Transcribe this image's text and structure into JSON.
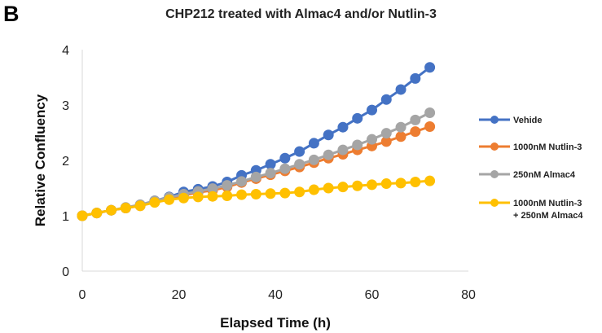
{
  "panel_label": "B",
  "chart_data": {
    "type": "line",
    "title": "CHP212 treated with Almac4 and/or Nutlin-3",
    "xlabel": "Elapsed Time (h)",
    "ylabel": "Relative Confluency",
    "xlim": [
      0,
      80
    ],
    "ylim": [
      0,
      4
    ],
    "xticks": [
      0,
      20,
      40,
      60,
      80
    ],
    "yticks": [
      0,
      1,
      2,
      3,
      4
    ],
    "grid": false,
    "legend_position": "right",
    "x": [
      0,
      3,
      6,
      9,
      12,
      15,
      18,
      21,
      24,
      27,
      30,
      33,
      36,
      39,
      42,
      45,
      48,
      51,
      54,
      57,
      60,
      63,
      66,
      69,
      72
    ],
    "series": [
      {
        "name": "Vehide",
        "color": "#4472C4",
        "values": [
          1.0,
          1.05,
          1.1,
          1.14,
          1.19,
          1.27,
          1.34,
          1.43,
          1.48,
          1.53,
          1.61,
          1.73,
          1.82,
          1.93,
          2.04,
          2.16,
          2.31,
          2.46,
          2.6,
          2.76,
          2.91,
          3.1,
          3.28,
          3.48,
          3.68
        ]
      },
      {
        "name": "1000nM Nutlin-3",
        "color": "#ED7D31",
        "values": [
          1.0,
          1.05,
          1.1,
          1.14,
          1.18,
          1.25,
          1.31,
          1.37,
          1.42,
          1.46,
          1.52,
          1.6,
          1.67,
          1.74,
          1.81,
          1.88,
          1.96,
          2.04,
          2.11,
          2.19,
          2.26,
          2.34,
          2.43,
          2.52,
          2.61
        ]
      },
      {
        "name": "250nM Almac4",
        "color": "#A5A5A5",
        "values": [
          1.0,
          1.05,
          1.1,
          1.15,
          1.2,
          1.27,
          1.33,
          1.39,
          1.44,
          1.49,
          1.55,
          1.62,
          1.7,
          1.77,
          1.85,
          1.93,
          2.01,
          2.1,
          2.19,
          2.28,
          2.38,
          2.49,
          2.6,
          2.73,
          2.86
        ]
      },
      {
        "name": "1000nM Nutlin-3\n+ 250nM Almac4",
        "color": "#FFC000",
        "values": [
          1.0,
          1.05,
          1.1,
          1.14,
          1.18,
          1.24,
          1.29,
          1.32,
          1.34,
          1.35,
          1.36,
          1.38,
          1.39,
          1.4,
          1.41,
          1.43,
          1.47,
          1.5,
          1.52,
          1.54,
          1.56,
          1.58,
          1.59,
          1.61,
          1.63
        ]
      }
    ]
  }
}
